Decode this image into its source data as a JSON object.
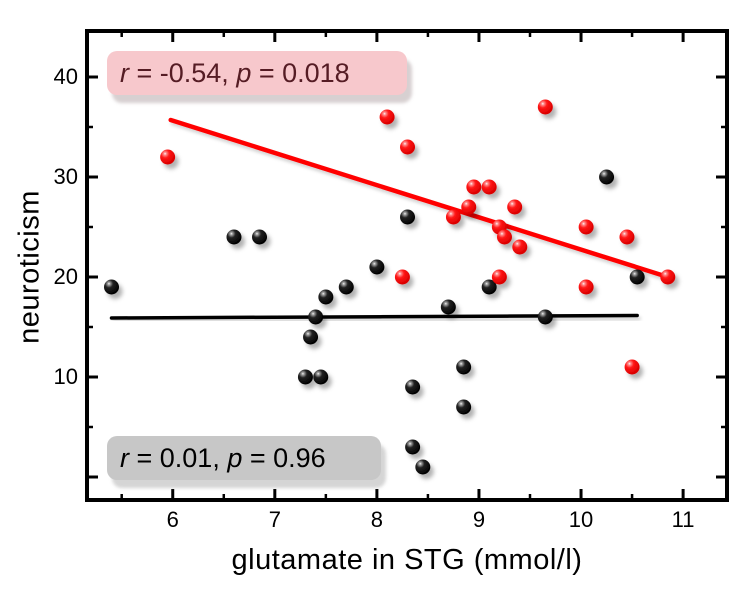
{
  "annotations": {
    "red": {
      "r_var": "r",
      "r_rest": " = -0.54, ",
      "p_var": "p",
      "p_rest": " = 0.018"
    },
    "black": {
      "r_var": "r",
      "r_rest": " = 0.01, ",
      "p_var": "p",
      "p_rest": " = 0.96"
    }
  },
  "chart_data": {
    "type": "scatter",
    "title": "",
    "xlabel": "glutamate in STG (mmol/l)",
    "ylabel": "neuroticism",
    "xlim": [
      5.16,
      11.43
    ],
    "ylim": [
      -2.3,
      44.6
    ],
    "x_major_ticks": [
      6,
      7,
      8,
      9,
      10,
      11
    ],
    "x_minor_ticks": [
      5.5,
      6.5,
      7.5,
      8.5,
      9.5,
      10.5
    ],
    "y_major_ticks": [
      0,
      10,
      20,
      30,
      40
    ],
    "y_labeled_ticks": [
      10,
      20,
      30,
      40
    ],
    "y_minor_ticks": [
      5,
      15,
      25,
      35
    ],
    "grid": false,
    "legend": "none",
    "series": [
      {
        "name": "black",
        "color": "#000000",
        "marker": "sphere",
        "stats_text": "r = 0.01, p = 0.96",
        "points": [
          [
            5.4,
            19
          ],
          [
            6.6,
            24
          ],
          [
            6.85,
            24
          ],
          [
            7.3,
            10
          ],
          [
            7.35,
            14
          ],
          [
            7.4,
            16
          ],
          [
            7.45,
            10
          ],
          [
            7.5,
            18
          ],
          [
            7.7,
            19
          ],
          [
            8.0,
            21
          ],
          [
            8.3,
            26
          ],
          [
            8.35,
            9
          ],
          [
            8.35,
            3
          ],
          [
            8.45,
            1
          ],
          [
            8.7,
            17
          ],
          [
            8.85,
            11
          ],
          [
            8.85,
            7
          ],
          [
            9.1,
            19
          ],
          [
            9.65,
            16
          ],
          [
            10.25,
            30
          ],
          [
            10.55,
            20
          ]
        ],
        "fit_line": {
          "x1": 5.4,
          "y1": 15.9,
          "x2": 10.55,
          "y2": 16.15
        }
      },
      {
        "name": "red",
        "color": "#ff0000",
        "marker": "sphere",
        "stats_text": "r = -0.54, p = 0.018",
        "points": [
          [
            5.95,
            32
          ],
          [
            8.1,
            36
          ],
          [
            8.25,
            20
          ],
          [
            8.3,
            33
          ],
          [
            8.75,
            26
          ],
          [
            8.9,
            27
          ],
          [
            8.95,
            29
          ],
          [
            9.1,
            29
          ],
          [
            9.2,
            25
          ],
          [
            9.2,
            20
          ],
          [
            9.25,
            24
          ],
          [
            9.35,
            27
          ],
          [
            9.4,
            23
          ],
          [
            9.65,
            37
          ],
          [
            10.05,
            25
          ],
          [
            10.05,
            19
          ],
          [
            10.45,
            24
          ],
          [
            10.5,
            11
          ],
          [
            10.85,
            20
          ]
        ],
        "fit_line": {
          "x1": 5.98,
          "y1": 35.7,
          "x2": 10.85,
          "y2": 20.0
        }
      }
    ]
  }
}
